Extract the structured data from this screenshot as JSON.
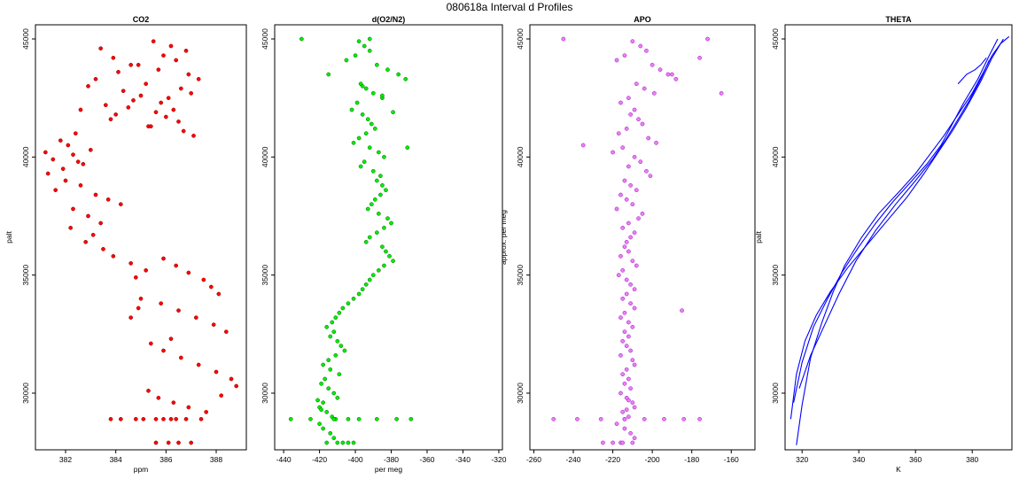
{
  "figure": {
    "title": "080618a   Interval d Profiles"
  },
  "chart_data": [
    {
      "type": "scatter",
      "title": "CO2",
      "xlabel": "ppm",
      "ylabel": "palt",
      "xlim": [
        380.8,
        389.2
      ],
      "ylim": [
        27600,
        45600
      ],
      "xticks": [
        382,
        384,
        386,
        388
      ],
      "yticks": [
        30000,
        35000,
        40000,
        45000
      ],
      "colors": {
        "points": "#ff0000",
        "outline": "#8b0000"
      },
      "series": [
        {
          "x": [
            385.5,
            386.2,
            386.8,
            385.9,
            386.4,
            384.9,
            385.7,
            386.9,
            387.3,
            385.2,
            386.6,
            387.0,
            386.1,
            385.8,
            386.3,
            383.4,
            383.9,
            384.6,
            384.1,
            383.2,
            382.9,
            384.3,
            385.0,
            384.7,
            383.6,
            382.6,
            384.0,
            383.8,
            385.3,
            382.4,
            381.8,
            382.1,
            383.0,
            382.3,
            381.5,
            382.7,
            384.5,
            385.6,
            386.0,
            386.5,
            385.4,
            386.7,
            387.1,
            381.9,
            381.3,
            382.0,
            382.6,
            381.6,
            383.2,
            383.7,
            384.2,
            381.2,
            382.5,
            382.3,
            382.9,
            383.4,
            382.2,
            383.1,
            382.8,
            383.5,
            383.9,
            384.6,
            385.2,
            384.8,
            385.9,
            386.4,
            386.9,
            387.5,
            387.8,
            388.1,
            385.0,
            384.9,
            384.6,
            385.8,
            386.5,
            387.2,
            387.9,
            388.4,
            386.2,
            385.4,
            385.9,
            386.6,
            387.3,
            388.0,
            388.6,
            388.8,
            385.3,
            385.7,
            386.3,
            386.9,
            387.6,
            388.2,
            384.8,
            385.1,
            385.6,
            386.2,
            386.8,
            387.4,
            384.2,
            385.9,
            386.4,
            383.8,
            385.6,
            386.1,
            386.5,
            387.0
          ],
          "y": [
            44900,
            44700,
            44500,
            44300,
            44100,
            43900,
            43700,
            43500,
            43300,
            43100,
            42900,
            42700,
            42500,
            42300,
            42000,
            44600,
            44200,
            43900,
            43600,
            43300,
            43000,
            42800,
            42600,
            42400,
            42200,
            42000,
            41800,
            41600,
            41300,
            41000,
            40700,
            40500,
            40300,
            40100,
            39900,
            39700,
            42100,
            41900,
            41700,
            41500,
            41300,
            41100,
            40900,
            39500,
            39300,
            39000,
            38800,
            38600,
            38400,
            38200,
            38000,
            40200,
            39800,
            37800,
            37500,
            37200,
            37000,
            36700,
            36400,
            36100,
            35800,
            35500,
            35200,
            34900,
            35700,
            35400,
            35100,
            34800,
            34500,
            34200,
            34000,
            33600,
            33200,
            33800,
            33500,
            33200,
            32900,
            32600,
            32300,
            32100,
            31800,
            31500,
            31200,
            30900,
            30600,
            30300,
            30100,
            29800,
            29600,
            29400,
            29200,
            29900,
            28900,
            28900,
            28900,
            28900,
            28900,
            28900,
            28900,
            28900,
            28900,
            28900,
            27900,
            27900,
            27900,
            27900
          ]
        }
      ]
    },
    {
      "type": "scatter",
      "title": "d(O2/N2)",
      "xlabel": "per meg",
      "ylabel": "",
      "xlim": [
        -445,
        -318
      ],
      "ylim": [
        27600,
        45600
      ],
      "xticks": [
        -440,
        -420,
        -400,
        -380,
        -360,
        -340,
        -320
      ],
      "yticks": [
        30000,
        35000,
        40000,
        45000
      ],
      "colors": {
        "points": "#00ee00",
        "outline": "#006400"
      },
      "series": [
        {
          "x": [
            -398,
            -395,
            -392,
            -400,
            -405,
            -388,
            -382,
            -376,
            -372,
            -397,
            -394,
            -390,
            -385,
            -399,
            -402,
            -396,
            -393,
            -391,
            -389,
            -394,
            -398,
            -401,
            -392,
            -387,
            -384,
            -395,
            -397,
            -390,
            -386,
            -388,
            -385,
            -383,
            -386,
            -389,
            -391,
            -393,
            -387,
            -382,
            -380,
            -384,
            -388,
            -392,
            -394,
            -385,
            -383,
            -381,
            -379,
            -384,
            -387,
            -390,
            -392,
            -394,
            -396,
            -398,
            -401,
            -404,
            -407,
            -409,
            -411,
            -413,
            -416,
            -412,
            -414,
            -410,
            -408,
            -406,
            -411,
            -415,
            -418,
            -414,
            -409,
            -417,
            -419,
            -415,
            -412,
            -410,
            -418,
            -420,
            -416,
            -413,
            -411,
            -420,
            -418,
            -414,
            -412,
            -416,
            -419,
            -421,
            -436,
            -425,
            -412,
            -404,
            -398,
            -388,
            -377,
            -369,
            -430,
            -392,
            -410,
            -407,
            -404,
            -401,
            -415,
            -396,
            -385,
            -379,
            -371
          ],
          "y": [
            44900,
            44700,
            44500,
            44300,
            44100,
            43900,
            43700,
            43500,
            43300,
            43100,
            42900,
            42700,
            42500,
            42300,
            42000,
            41800,
            41600,
            41400,
            41200,
            41000,
            40800,
            40600,
            40400,
            40200,
            40000,
            39800,
            39600,
            39400,
            39200,
            39000,
            38800,
            38600,
            38400,
            38200,
            38000,
            37800,
            37600,
            37400,
            37200,
            37000,
            36800,
            36600,
            36400,
            36200,
            36000,
            35800,
            35600,
            35400,
            35200,
            35000,
            34800,
            34600,
            34400,
            34200,
            34000,
            33800,
            33600,
            33400,
            33200,
            33000,
            32800,
            32600,
            32400,
            32200,
            32000,
            31800,
            31600,
            31400,
            31200,
            31000,
            30800,
            30600,
            30400,
            30200,
            30000,
            29800,
            29600,
            29400,
            29200,
            29000,
            28900,
            28700,
            28500,
            28300,
            28100,
            27900,
            29300,
            29700,
            28900,
            28900,
            28900,
            28900,
            28900,
            28900,
            28900,
            28900,
            45000,
            45000,
            27900,
            27900,
            27900,
            27900,
            43500,
            43000,
            42600,
            41900,
            40400
          ]
        }
      ]
    },
    {
      "type": "scatter",
      "title": "APO",
      "xlabel": "",
      "ylabel": "approx. per meg",
      "xlim": [
        -262,
        -148
      ],
      "ylim": [
        27600,
        45600
      ],
      "xticks": [
        -260,
        -240,
        -220,
        -200,
        -180,
        -160
      ],
      "yticks": [
        30000,
        35000,
        40000,
        45000
      ],
      "colors": {
        "points": "#ee82ee",
        "outline": "#9400d3"
      },
      "series": [
        {
          "x": [
            -210,
            -206,
            -203,
            -214,
            -218,
            -200,
            -196,
            -192,
            -188,
            -208,
            -204,
            -199,
            -212,
            -216,
            -209,
            -211,
            -207,
            -205,
            -213,
            -217,
            -202,
            -198,
            -215,
            -220,
            -209,
            -206,
            -212,
            -203,
            -201,
            -214,
            -211,
            -208,
            -216,
            -213,
            -210,
            -218,
            -205,
            -207,
            -212,
            -215,
            -209,
            -211,
            -213,
            -214,
            -212,
            -216,
            -210,
            -208,
            -215,
            -217,
            -213,
            -211,
            -209,
            -213,
            -215,
            -211,
            -209,
            -214,
            -216,
            -212,
            -210,
            -214,
            -212,
            -215,
            -213,
            -211,
            -216,
            -210,
            -209,
            -213,
            -215,
            -212,
            -214,
            -211,
            -216,
            -213,
            -210,
            -209,
            -215,
            -212,
            -214,
            -218,
            -214,
            -211,
            -209,
            -216,
            -213,
            -212,
            -250,
            -238,
            -226,
            -214,
            -204,
            -194,
            -184,
            -176,
            -245,
            -172,
            -225,
            -220,
            -215,
            -210,
            -235,
            -190,
            -176,
            -165,
            -185
          ],
          "y": [
            44900,
            44700,
            44500,
            44300,
            44100,
            43900,
            43700,
            43500,
            43300,
            43100,
            42900,
            42700,
            42500,
            42300,
            42000,
            41800,
            41600,
            41400,
            41200,
            41000,
            40800,
            40600,
            40400,
            40200,
            40000,
            39800,
            39600,
            39400,
            39200,
            39000,
            38800,
            38600,
            38400,
            38200,
            38000,
            37800,
            37600,
            37400,
            37200,
            37000,
            36800,
            36600,
            36400,
            36200,
            36000,
            35800,
            35600,
            35400,
            35200,
            35000,
            34800,
            34600,
            34400,
            34200,
            34000,
            33800,
            33600,
            33400,
            33200,
            33000,
            32800,
            32600,
            32400,
            32200,
            32000,
            31800,
            31600,
            31400,
            31200,
            31000,
            30800,
            30600,
            30400,
            30200,
            30000,
            29800,
            29600,
            29400,
            29200,
            29000,
            28900,
            28700,
            28500,
            28300,
            28100,
            27900,
            29300,
            29700,
            28900,
            28900,
            28900,
            28900,
            28900,
            28900,
            28900,
            28900,
            45000,
            45000,
            27900,
            27900,
            27900,
            27900,
            40500,
            43500,
            44200,
            42700,
            33500
          ]
        }
      ]
    },
    {
      "type": "line",
      "title": "THETA",
      "xlabel": "K",
      "ylabel": "palt",
      "xlim": [
        314,
        394
      ],
      "ylim": [
        27600,
        45600
      ],
      "xticks": [
        320,
        340,
        360,
        380
      ],
      "yticks": [
        30000,
        35000,
        40000,
        45000
      ],
      "colors": {
        "line": "#0000ff"
      },
      "series": [
        {
          "x": [
            318,
            320,
            323,
            327,
            331,
            335,
            341,
            347,
            354,
            360,
            365,
            370,
            375,
            380,
            384,
            387,
            390,
            393
          ],
          "y": [
            27800,
            29500,
            31500,
            33000,
            34300,
            35400,
            36600,
            37600,
            38500,
            39300,
            40100,
            40900,
            41800,
            42700,
            43600,
            44300,
            44800,
            45100
          ]
        },
        {
          "x": [
            316,
            318,
            321,
            325,
            330,
            336,
            343,
            350,
            357,
            363,
            368,
            373,
            378,
            383,
            387,
            391
          ],
          "y": [
            28900,
            30800,
            32200,
            33300,
            34300,
            35300,
            36300,
            37300,
            38300,
            39300,
            40200,
            41100,
            42100,
            43200,
            44200,
            45000
          ]
        },
        {
          "x": [
            317,
            320,
            324,
            329,
            334,
            340,
            346,
            352,
            358,
            364,
            369,
            373,
            377,
            382,
            386,
            389
          ],
          "y": [
            29600,
            31300,
            32800,
            34000,
            35100,
            36200,
            37200,
            38100,
            38900,
            39700,
            40500,
            41400,
            42300,
            43300,
            44300,
            45000
          ]
        },
        {
          "x": [
            319,
            323,
            328,
            333,
            339,
            346,
            353,
            360,
            366,
            371,
            375,
            379,
            383,
            386
          ],
          "y": [
            30200,
            31600,
            32900,
            34200,
            35600,
            36900,
            38000,
            39000,
            39900,
            40800,
            41600,
            42400,
            43300,
            44100
          ]
        },
        {
          "x": [
            375,
            378,
            381,
            383,
            385
          ],
          "y": [
            43100,
            43500,
            43700,
            43900,
            44200
          ]
        }
      ]
    }
  ]
}
